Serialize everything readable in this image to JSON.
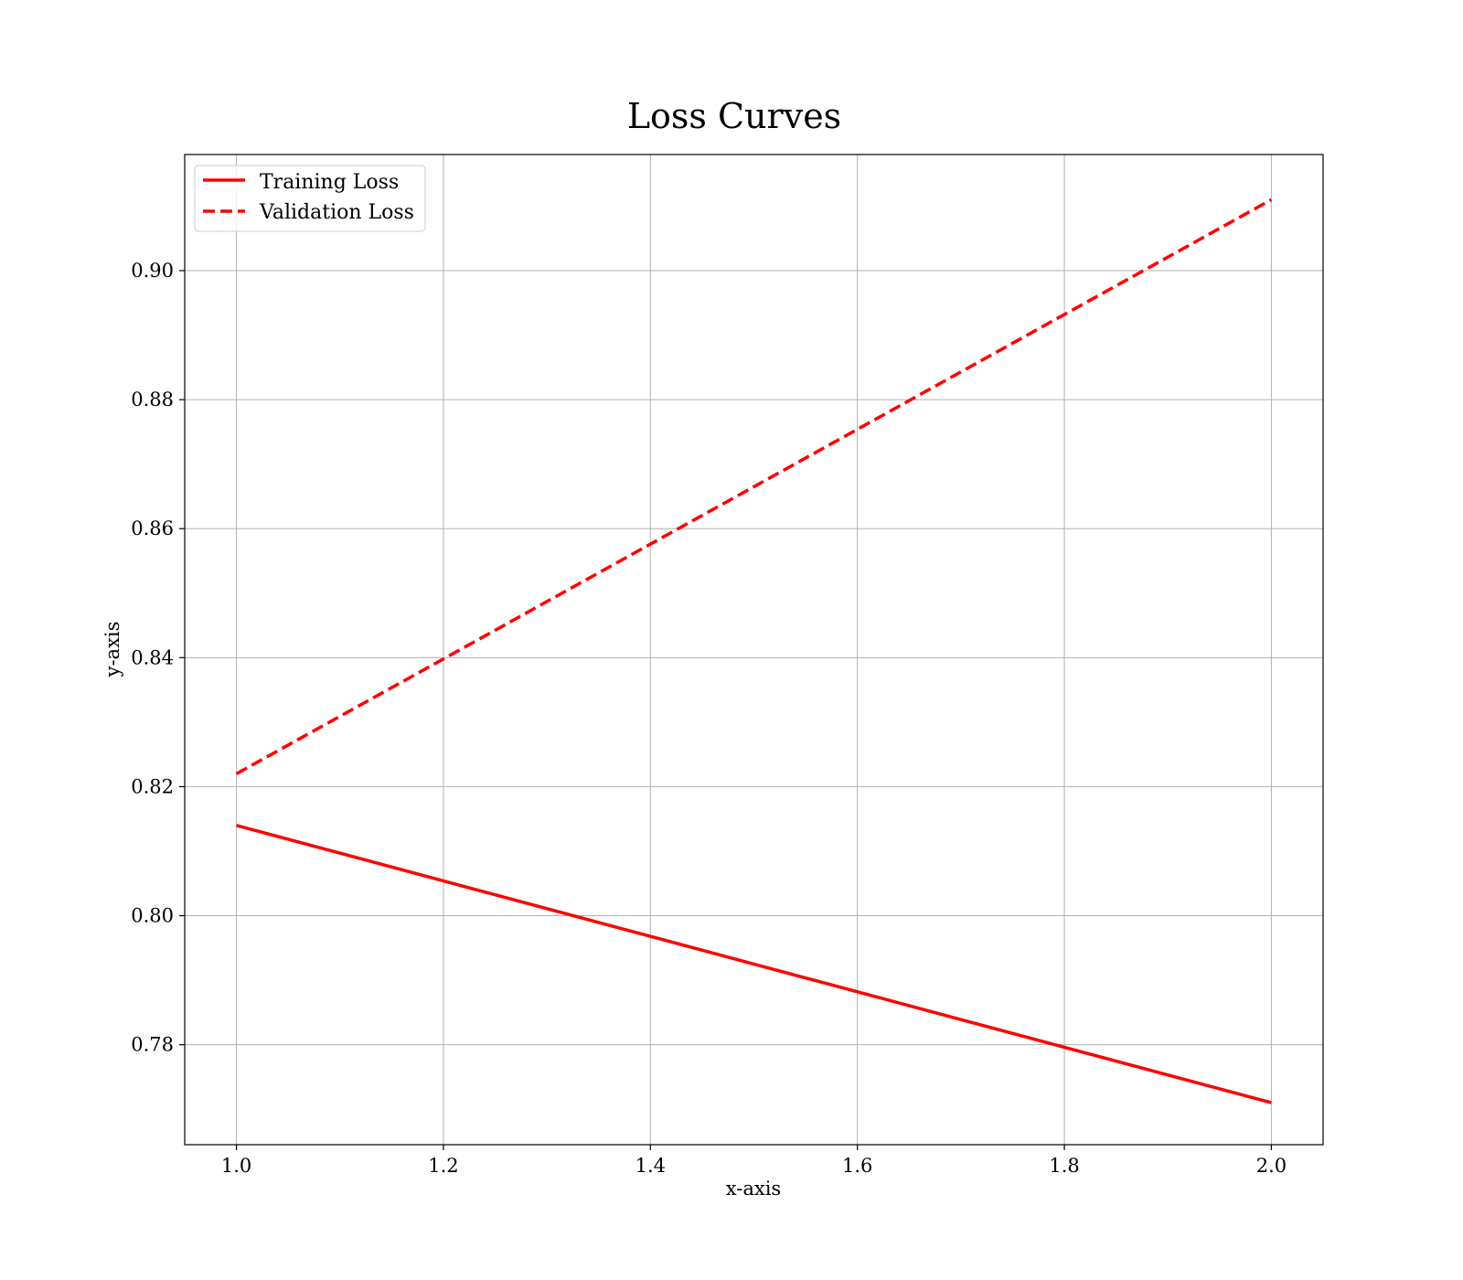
{
  "chart_data": {
    "type": "line",
    "title": "Loss Curves",
    "xlabel": "x-axis",
    "ylabel": "y-axis",
    "x": [
      1.0,
      2.0
    ],
    "xlim": [
      0.95,
      2.05
    ],
    "ylim": [
      0.7645,
      0.918
    ],
    "xticks": [
      1.0,
      1.2,
      1.4,
      1.6,
      1.8,
      2.0
    ],
    "xtick_labels": [
      "1.0",
      "1.2",
      "1.4",
      "1.6",
      "1.8",
      "2.0"
    ],
    "yticks": [
      0.78,
      0.8,
      0.82,
      0.84,
      0.86,
      0.88,
      0.9
    ],
    "ytick_labels": [
      "0.78",
      "0.80",
      "0.82",
      "0.84",
      "0.86",
      "0.88",
      "0.90"
    ],
    "grid": true,
    "legend_position": "top-left",
    "series": [
      {
        "name": "Training Loss",
        "values": [
          0.814,
          0.771
        ],
        "color": "#ff0000",
        "style": "solid"
      },
      {
        "name": "Validation Loss",
        "values": [
          0.822,
          0.911
        ],
        "color": "#ff0000",
        "style": "dashed"
      }
    ]
  }
}
